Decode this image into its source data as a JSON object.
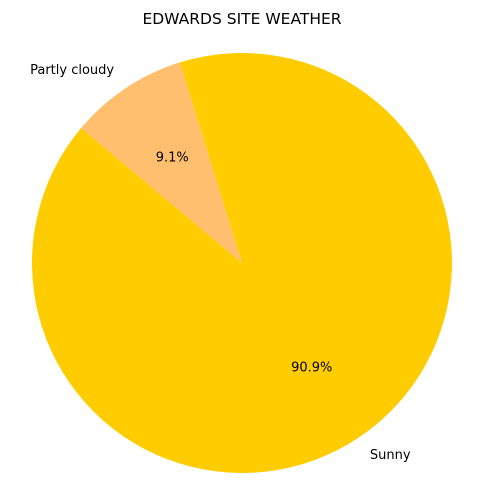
{
  "chart_data": {
    "type": "pie",
    "title": "EDWARDS SITE WEATHER",
    "categories": [
      "Sunny",
      "Partly cloudy"
    ],
    "values": [
      90.9,
      9.1
    ],
    "percent_labels": [
      "90.9%",
      "9.1%"
    ],
    "colors": [
      "#ffcc00",
      "#ffbf6e"
    ],
    "start_angle_deg": 140,
    "direction": "counterclockwise"
  }
}
